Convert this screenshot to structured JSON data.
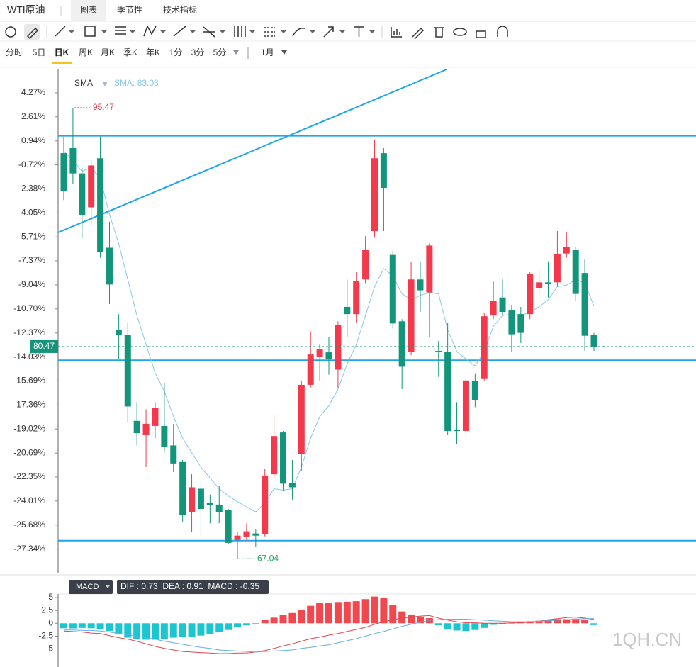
{
  "header": {
    "title": "WTI原油",
    "tabs": [
      "图表",
      "季节性",
      "技术指标"
    ],
    "active_tab": 0
  },
  "periods": {
    "items": [
      "分时",
      "5日",
      "日K",
      "周K",
      "月K",
      "季K",
      "年K",
      "1分",
      "3分",
      "5分"
    ],
    "active": 2,
    "dropdown": "1月"
  },
  "chart_data": [
    {
      "type": "candlestick",
      "indicator": "SMA",
      "indicator_readout": "SMA: 83.03",
      "open": [
        0.09,
        0.44,
        -1.31,
        -3.66,
        -0.26,
        -6.46,
        -12.16,
        -12.51,
        -18.46,
        -19.41,
        -18.81,
        -18.81,
        -20.16,
        -21.31,
        -24.76,
        -23.16,
        -24.16,
        -24.26,
        -24.66,
        -26.71,
        -26.51,
        -26.26,
        -26.31,
        -22.16,
        -19.26,
        -22.76,
        -20.76,
        -15.96,
        -14.01,
        -13.71,
        -14.91,
        -10.56,
        -11.06,
        -8.66,
        -5.31,
        0.09,
        -6.96,
        -11.56,
        -13.66,
        -8.66,
        -9.56,
        -13.61,
        -13.66,
        -19.06,
        -19.16,
        -15.71,
        -15.51,
        -11.16,
        -9.91,
        -10.81,
        -11.06,
        -11.06,
        -9.26,
        -8.86,
        -8.86,
        -6.86,
        -6.61,
        -8.21,
        -12.51
      ],
      "high": [
        1.24,
        3.24,
        -0.91,
        -0.41,
        1.24,
        -4.66,
        -11.06,
        -11.66,
        -17.16,
        -17.66,
        -17.16,
        -15.81,
        -18.66,
        -21.16,
        -22.16,
        -22.56,
        -23.56,
        -22.96,
        -24.56,
        -26.16,
        -25.56,
        -25.96,
        -21.76,
        -18.01,
        -19.16,
        -21.16,
        -15.66,
        -12.26,
        -13.16,
        -12.66,
        -11.56,
        -8.66,
        -8.16,
        -5.66,
        1.04,
        0.44,
        -6.66,
        -11.41,
        -7.41,
        -7.41,
        -6.16,
        -12.91,
        -11.66,
        -17.16,
        -15.41,
        -15.16,
        -10.96,
        -8.81,
        -8.66,
        -10.41,
        -10.56,
        -8.16,
        -8.06,
        -7.41,
        -5.31,
        -5.41,
        -6.41,
        -7.26,
        -12.36
      ],
      "low": [
        -3.16,
        -2.06,
        -5.81,
        -4.91,
        -7.16,
        -10.36,
        -14.16,
        -18.56,
        -20.16,
        -21.66,
        -19.66,
        -20.66,
        -22.01,
        -25.46,
        -26.16,
        -26.41,
        -25.56,
        -25.56,
        -27.01,
        -28.01,
        -26.76,
        -27.16,
        -26.46,
        -22.41,
        -23.26,
        -23.91,
        -21.91,
        -16.16,
        -15.66,
        -15.26,
        -16.16,
        -12.66,
        -11.66,
        -8.91,
        -5.76,
        -5.31,
        -12.06,
        -16.26,
        -13.91,
        -10.91,
        -12.66,
        -15.41,
        -19.41,
        -20.06,
        -19.76,
        -17.51,
        -15.66,
        -11.41,
        -11.16,
        -13.66,
        -13.06,
        -11.41,
        -9.66,
        -9.91,
        -9.16,
        -7.16,
        -10.16,
        -13.61,
        -13.61
      ],
      "close": [
        -2.56,
        -1.31,
        -4.21,
        -0.76,
        -6.76,
        -9.01,
        -12.51,
        -17.46,
        -19.31,
        -18.66,
        -17.56,
        -20.26,
        -21.41,
        -24.96,
        -23.06,
        -24.56,
        -24.31,
        -24.76,
        -26.91,
        -26.41,
        -26.11,
        -26.41,
        -22.26,
        -19.51,
        -22.81,
        -23.06,
        -15.96,
        -13.86,
        -13.51,
        -14.16,
        -11.81,
        -11.06,
        -8.76,
        -6.61,
        -0.26,
        -2.31,
        -11.71,
        -14.71,
        -8.66,
        -9.41,
        -6.31,
        -13.66,
        -19.16,
        -19.16,
        -15.66,
        -17.01,
        -11.21,
        -10.16,
        -10.91,
        -12.46,
        -12.36,
        -8.26,
        -8.86,
        -8.96,
        -6.91,
        -6.41,
        -9.66,
        -12.56,
        -13.31
      ],
      "sma": [
        0.24,
        -0.41,
        -1.16,
        -0.91,
        -1.66,
        -4.16,
        -6.16,
        -8.66,
        -11.16,
        -13.16,
        -15.16,
        -16.41,
        -18.16,
        -19.66,
        -20.66,
        -21.66,
        -22.41,
        -23.16,
        -23.66,
        -24.06,
        -24.41,
        -24.76,
        -24.16,
        -23.16,
        -23.26,
        -23.16,
        -21.66,
        -19.66,
        -18.16,
        -17.41,
        -16.26,
        -14.51,
        -13.16,
        -11.16,
        -9.16,
        -7.91,
        -8.41,
        -9.66,
        -10.06,
        -9.76,
        -9.56,
        -9.66,
        -12.16,
        -13.66,
        -14.16,
        -14.66,
        -13.66,
        -11.91,
        -11.16,
        -11.06,
        -11.16,
        -10.91,
        -10.56,
        -10.06,
        -9.16,
        -9.06,
        -8.66,
        -8.91,
        -10.51
      ],
      "levels": [
        1.29,
        -14.26,
        -26.76
      ],
      "max_label": {
        "text": "95.47",
        "candle": 1
      },
      "min_label": {
        "text": "67.04",
        "candle": 19
      },
      "last_price_label": "80.47",
      "up_color": "#f23a4c",
      "down_color": "#12957a",
      "sma_color": "#86c8ea",
      "level_color": "#1ea5ea",
      "ylim": [
        -28.98,
        5.94
      ],
      "yticks": [
        {
          "value": 4.27,
          "label": "4.27%"
        },
        {
          "value": 2.61,
          "label": "2.61%"
        },
        {
          "value": 0.94,
          "label": "0.94%"
        },
        {
          "value": -0.72,
          "label": "-0.72%"
        },
        {
          "value": -2.38,
          "label": "-2.38%"
        },
        {
          "value": -4.05,
          "label": "-4.05%"
        },
        {
          "value": -5.71,
          "label": "-5.71%"
        },
        {
          "value": -7.37,
          "label": "-7.37%"
        },
        {
          "value": -9.04,
          "label": "-9.04%"
        },
        {
          "value": -10.7,
          "label": "-10.70%"
        },
        {
          "value": -12.37,
          "label": "-12.37%"
        },
        {
          "value": -14.03,
          "label": "-14.03%"
        },
        {
          "value": -15.69,
          "label": "-15.69%"
        },
        {
          "value": -17.36,
          "label": "-17.36%"
        },
        {
          "value": -19.02,
          "label": "-19.02%"
        },
        {
          "value": -20.69,
          "label": "-20.69%"
        },
        {
          "value": -22.35,
          "label": "-22.35%"
        },
        {
          "value": -24.01,
          "label": "-24.01%"
        },
        {
          "value": -25.68,
          "label": "-25.68%"
        },
        {
          "value": -27.34,
          "label": "-27.34%"
        }
      ]
    },
    {
      "type": "macd",
      "title": "MACD",
      "readout": "DIF : 0.73  DEA : 0.91  MACD : -0.35",
      "histogram": [
        -0.97,
        -1.0,
        -0.9,
        -0.97,
        -1.1,
        -1.5,
        -2.1,
        -2.8,
        -3.1,
        -3.2,
        -3.2,
        -3.0,
        -2.8,
        -2.7,
        -2.6,
        -2.4,
        -2.1,
        -1.7,
        -1.3,
        -0.8,
        -0.4,
        -0.1,
        0.6,
        1.1,
        1.6,
        2.0,
        2.6,
        3.4,
        3.9,
        3.9,
        4.0,
        4.2,
        4.3,
        4.7,
        5.2,
        4.9,
        3.6,
        2.3,
        1.7,
        1.3,
        1.0,
        -0.4,
        -1.1,
        -1.4,
        -1.5,
        -1.3,
        -0.9,
        -0.3,
        -0.1,
        0.1,
        0.2,
        0.4,
        0.5,
        0.7,
        0.8,
        0.8,
        0.9,
        0.6,
        -0.35
      ],
      "dif": [
        -1.5,
        -1.6,
        -1.7,
        -1.9,
        -2.0,
        -2.4,
        -2.8,
        -3.1,
        -3.5,
        -4.0,
        -4.5,
        -4.9,
        -5.2,
        -5.5,
        -5.6,
        -5.7,
        -5.8,
        -5.9,
        -5.9,
        -5.8,
        -5.8,
        -5.6,
        -5.3,
        -4.9,
        -4.4,
        -4.0,
        -3.5,
        -3.0,
        -2.7,
        -2.3,
        -2.0,
        -1.6,
        -1.2,
        -0.8,
        -0.2,
        0.3,
        0.7,
        1.0,
        1.2,
        1.4,
        1.5,
        1.0,
        0.6,
        0.3,
        0.1,
        0.1,
        0.0,
        0.0,
        0.0,
        0.1,
        0.1,
        0.2,
        0.4,
        0.7,
        0.9,
        1.1,
        1.2,
        1.0,
        0.73
      ],
      "dea": [
        -1.3,
        -1.3,
        -1.4,
        -1.4,
        -1.5,
        -1.7,
        -2.0,
        -2.2,
        -2.5,
        -2.8,
        -3.1,
        -3.5,
        -3.8,
        -4.1,
        -4.4,
        -4.7,
        -4.9,
        -5.2,
        -5.3,
        -5.4,
        -5.5,
        -5.6,
        -5.5,
        -5.4,
        -5.3,
        -5.2,
        -4.9,
        -4.7,
        -4.4,
        -4.2,
        -3.8,
        -3.4,
        -3.0,
        -2.5,
        -2.0,
        -1.6,
        -1.1,
        -0.6,
        -0.2,
        0.2,
        0.6,
        0.7,
        0.8,
        0.8,
        0.8,
        0.7,
        0.6,
        0.5,
        0.4,
        0.3,
        0.3,
        0.3,
        0.4,
        0.5,
        0.6,
        0.7,
        0.8,
        0.9,
        0.91
      ],
      "positive_color": "#f0484e",
      "negative_color": "#1cc6d0",
      "dif_color": "#e0484e",
      "dea_color": "#5fb0e6",
      "ylim": [
        -7.0,
        5.7
      ],
      "yticks": [
        5,
        2.5,
        0,
        -2.5,
        -5
      ]
    }
  ],
  "watermark": "1QH.CN"
}
